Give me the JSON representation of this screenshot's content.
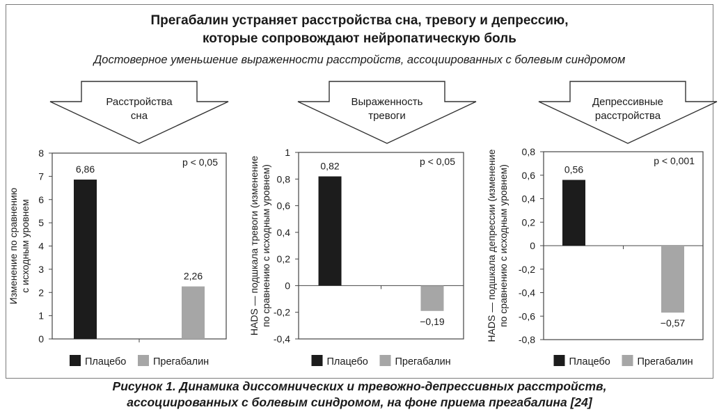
{
  "header": {
    "title_line1": "Прегабалин устраняет расстройства сна, тревогу и депрессию,",
    "title_line2": "которые сопровождают нейропатическую боль",
    "subtitle": "Достоверное уменьшение выраженности расстройств, ассоциированных с болевым синдромом"
  },
  "caption": {
    "line1": "Рисунок 1. Динамика диссомнических и тревожно-депрессивных расстройств,",
    "line2": "ассоциированных с болевым синдромом, на фоне приема прегабалина [24]"
  },
  "legend": {
    "placebo": "Плацебо",
    "pregabalin": "Прегабалин"
  },
  "colors": {
    "placebo": "#1c1c1c",
    "pregabalin": "#a6a6a6",
    "frame": "#7a7a7a"
  },
  "chart_data": [
    {
      "type": "bar",
      "arrow_label": [
        "Расстройства",
        "сна"
      ],
      "ylabel": [
        "Изменение по сравнению",
        "с исходным уровнем"
      ],
      "ylim": [
        0,
        8
      ],
      "yticks": [
        "0",
        "1",
        "2",
        "3",
        "4",
        "5",
        "6",
        "7",
        "8"
      ],
      "series": [
        {
          "name": "Плацебо",
          "values": [
            6.86
          ],
          "labels": [
            "6,86"
          ]
        },
        {
          "name": "Прегабалин",
          "values": [
            2.26
          ],
          "labels": [
            "2,26"
          ]
        }
      ],
      "pvalue": "p < 0,05",
      "legend_position": "bottom"
    },
    {
      "type": "bar",
      "arrow_label": [
        "Выраженность",
        "тревоги"
      ],
      "ylabel": [
        "HADS — подшкала тревоги (изменение",
        "по сравнению с исходным уровнем)"
      ],
      "ylim": [
        -0.4,
        1
      ],
      "yticks": [
        "-0,4",
        "-0,2",
        "0",
        "0,2",
        "0,4",
        "0,6",
        "0,8",
        "1"
      ],
      "series": [
        {
          "name": "Плацебо",
          "values": [
            0.82
          ],
          "labels": [
            "0,82"
          ]
        },
        {
          "name": "Прегабалин",
          "values": [
            -0.19
          ],
          "labels": [
            "−0,19"
          ]
        }
      ],
      "pvalue": "p < 0,05",
      "legend_position": "bottom"
    },
    {
      "type": "bar",
      "arrow_label": [
        "Депрессивные",
        "расстройства"
      ],
      "ylabel": [
        "HADS — подшкала депрессии (изменение",
        "по сравнению с исходным уровнем)"
      ],
      "ylim": [
        -0.8,
        0.8
      ],
      "yticks": [
        "-0,8",
        "-0,6",
        "-0,4",
        "-0,2",
        "0",
        "0,2",
        "0,4",
        "0,6",
        "0,8"
      ],
      "series": [
        {
          "name": "Плацебо",
          "values": [
            0.56
          ],
          "labels": [
            "0,56"
          ]
        },
        {
          "name": "Прегабалин",
          "values": [
            -0.57
          ],
          "labels": [
            "−0,57"
          ]
        }
      ],
      "pvalue": "p < 0,001",
      "legend_position": "bottom"
    }
  ]
}
